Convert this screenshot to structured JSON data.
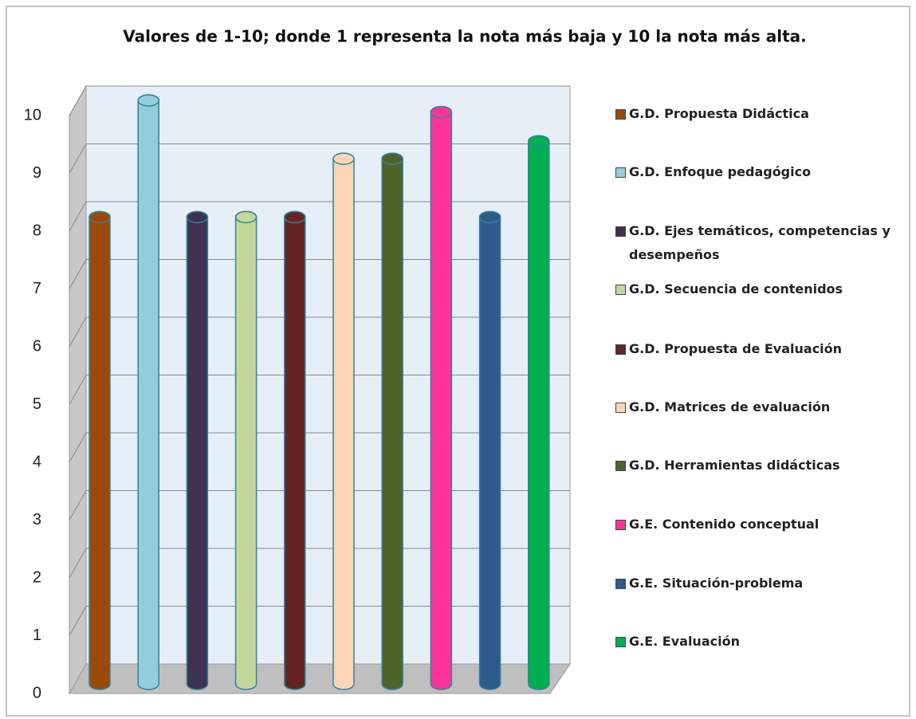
{
  "chart_data": {
    "type": "bar3d",
    "title": "Valores de 1-10; donde 1 representa la nota más baja y 10 la nota más alta.",
    "series": [
      {
        "name": "G.D.  Propuesta Didáctica",
        "color": "#9c4a0a",
        "values": [
          8
        ]
      },
      {
        "name": "G.D.  Enfoque pedagógico",
        "color": "#92cddc",
        "values": [
          10
        ]
      },
      {
        "name": "G.D. Ejes temáticos, competencias y desempeños",
        "color": "#3f3151",
        "values": [
          8
        ]
      },
      {
        "name": "G.D. Secuencia de contenidos",
        "color": "#c4d79b",
        "values": [
          8
        ]
      },
      {
        "name": "G.D. Propuesta de Evaluación",
        "color": "#632523",
        "values": [
          8
        ]
      },
      {
        "name": "G.D. Matrices de evaluación",
        "color": "#fcd5b4",
        "values": [
          9
        ]
      },
      {
        "name": "G.D. Herramientas didácticas",
        "color": "#4f6228",
        "values": [
          9
        ]
      },
      {
        "name": "G.E. Contenido conceptual",
        "color": "#ff3399",
        "values": [
          9.8
        ]
      },
      {
        "name": "G.E. Situación-problema",
        "color": "#2e5a8a",
        "values": [
          8
        ]
      },
      {
        "name": "G.E. Evaluación",
        "color": "#00b050",
        "values": [
          9.3
        ]
      }
    ],
    "ylim": [
      0,
      10
    ],
    "yticks": [
      0,
      1,
      2,
      3,
      4,
      5,
      6,
      7,
      8,
      9,
      10
    ],
    "grid": true,
    "legend": "right"
  }
}
